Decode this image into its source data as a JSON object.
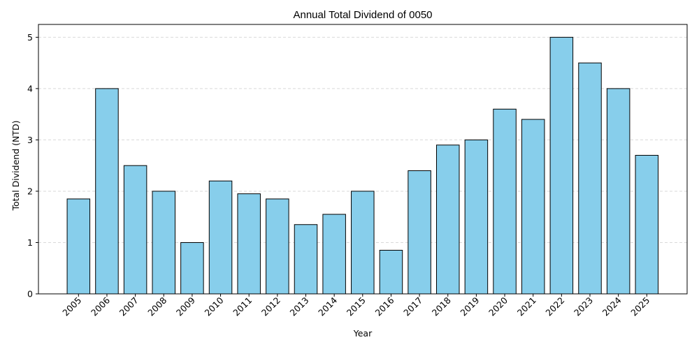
{
  "chart_data": {
    "type": "bar",
    "title": "Annual Total Dividend of 0050",
    "xlabel": "Year",
    "ylabel": "Total Dividend (NTD)",
    "categories": [
      "2005",
      "2006",
      "2007",
      "2008",
      "2009",
      "2010",
      "2011",
      "2012",
      "2013",
      "2014",
      "2015",
      "2016",
      "2017",
      "2018",
      "2019",
      "2020",
      "2021",
      "2022",
      "2023",
      "2024",
      "2025"
    ],
    "values": [
      1.85,
      4.0,
      2.5,
      2.0,
      1.0,
      2.2,
      1.95,
      1.85,
      1.35,
      1.55,
      2.0,
      0.85,
      2.4,
      2.9,
      3.0,
      3.6,
      3.4,
      5.0,
      4.5,
      4.0,
      2.7
    ],
    "ylim": [
      0,
      5.25
    ],
    "yticks": [
      0,
      1,
      2,
      3,
      4,
      5
    ],
    "grid": "y-dashed",
    "colors": {
      "bar_fill": "#87CEEB",
      "bar_edge": "#000000",
      "grid": "#d9d9d9"
    }
  }
}
